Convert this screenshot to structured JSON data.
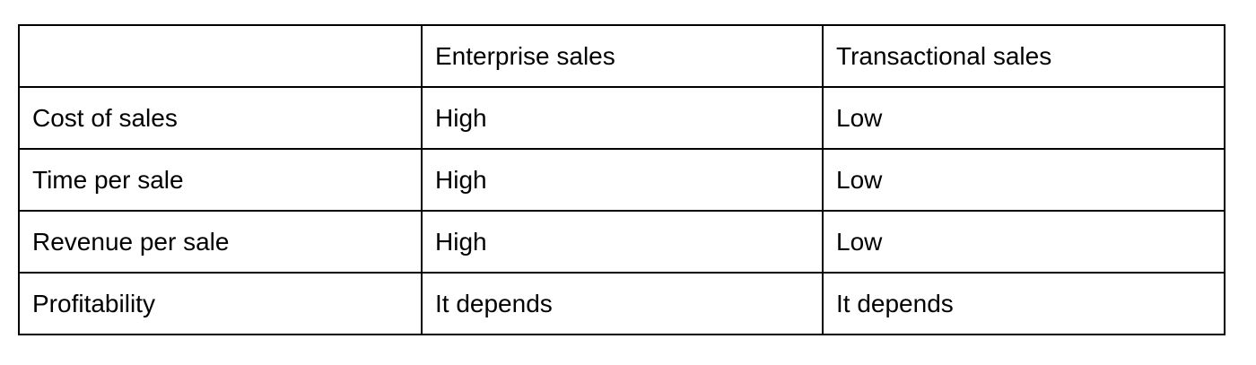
{
  "table": {
    "header": [
      "",
      "Enterprise sales",
      "Transactional sales"
    ],
    "rows": [
      [
        "Cost of sales",
        "High",
        "Low"
      ],
      [
        "Time per sale",
        "High",
        "Low"
      ],
      [
        "Revenue per sale",
        "High",
        "Low"
      ],
      [
        "Profitability",
        "It depends",
        "It depends"
      ]
    ]
  }
}
